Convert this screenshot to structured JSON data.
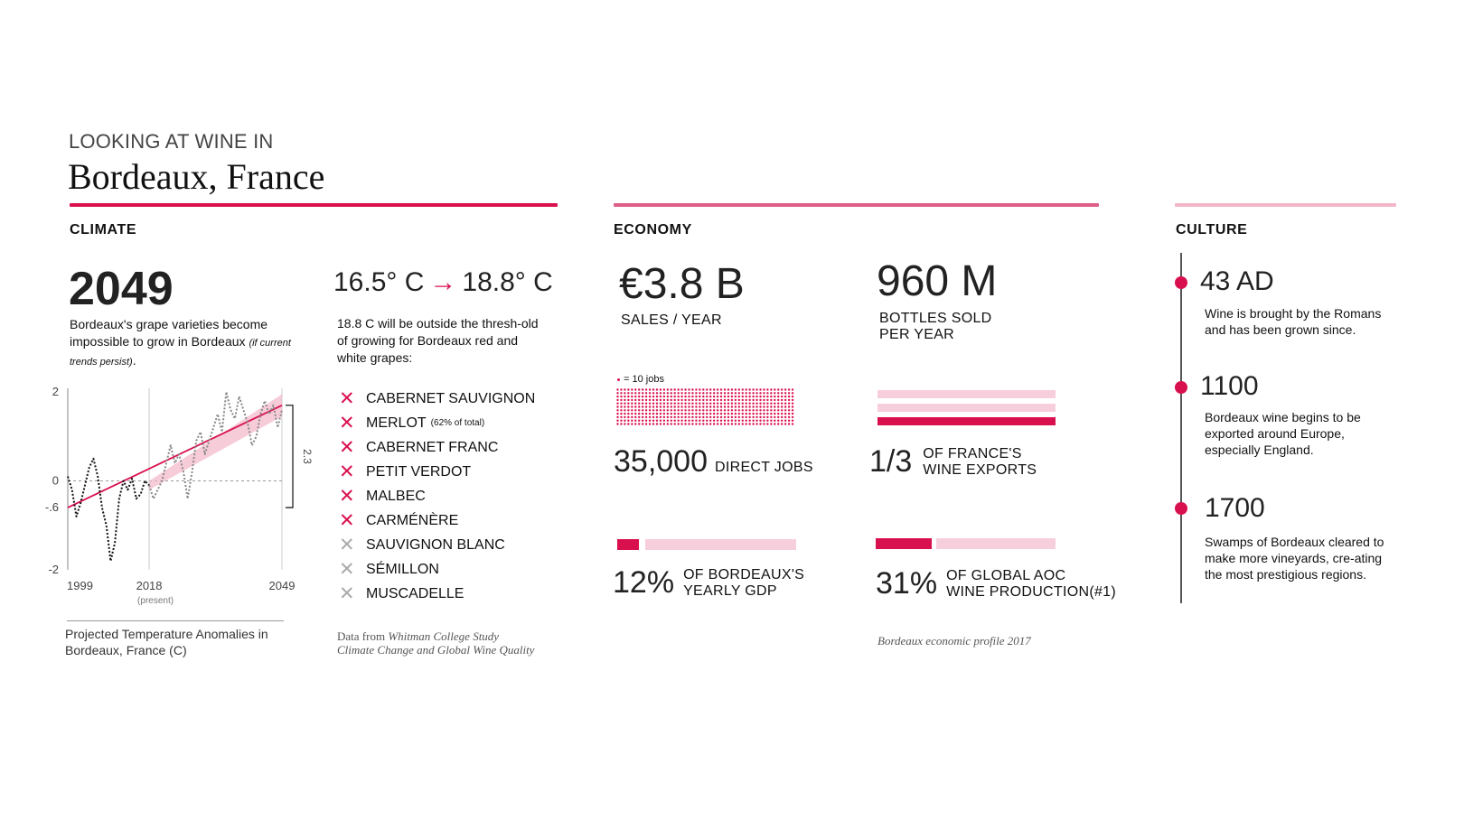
{
  "header": {
    "kicker": "LOOKING AT WINE IN",
    "title": "Bordeaux, France"
  },
  "colors": {
    "accent": "#d9104e",
    "economy_rule": "#de5f87",
    "culture_rule": "#f3b6c9",
    "light_pink": "#f7cfdc"
  },
  "climate": {
    "heading": "CLIMATE",
    "stat_value": "2049",
    "stat_desc": "Bordeaux's grape varieties become impossible to grow in Bordeaux",
    "stat_note": "(if current trends persist)",
    "stat_end": ".",
    "temp_from": "16.5° C",
    "temp_arrow": "→",
    "temp_to": "18.8° C",
    "temp_desc": "18.8 C will be outside the thresh-old of growing for Bordeaux red and white grapes:",
    "grapes": [
      {
        "name": "CABERNET SAUVIGNON",
        "note": "",
        "status": "affected"
      },
      {
        "name": "MERLOT",
        "note": "(62% of total)",
        "status": "affected"
      },
      {
        "name": "CABERNET FRANC",
        "note": "",
        "status": "affected"
      },
      {
        "name": "PETIT VERDOT",
        "note": "",
        "status": "affected"
      },
      {
        "name": "MALBEC",
        "note": "",
        "status": "affected"
      },
      {
        "name": "CARMÉNÈRE",
        "note": "",
        "status": "affected"
      },
      {
        "name": "SAUVIGNON BLANC",
        "note": "",
        "status": "not-affected"
      },
      {
        "name": "SÉMILLON",
        "note": "",
        "status": "not-affected"
      },
      {
        "name": "MUSCADELLE",
        "note": "",
        "status": "not-affected"
      }
    ],
    "x_mark": "✕",
    "chart_caption": "Projected Temperature Anomalies in Bordeaux, France (C)",
    "source_prefix": "Data from ",
    "source_title1": "Whitman College Study",
    "source_title2": "Climate Change and Global Wine Quality"
  },
  "chart_data": {
    "type": "line",
    "title": "Projected Temperature Anomalies in Bordeaux, France (C)",
    "xlabel": "",
    "ylabel": "",
    "xlim": [
      1999,
      2049
    ],
    "ylim": [
      -2,
      2
    ],
    "x_ticks": [
      "1999",
      "2018",
      "2049"
    ],
    "x_tick_note": "(present)",
    "y_ticks": [
      "2",
      "0",
      "-.6",
      "-2"
    ],
    "annotation": "2.3",
    "grid": "vertical lines at 2018 and 2049, dashed zero line",
    "series": [
      {
        "style": "dotted",
        "x": [
          1999,
          2000,
          2001,
          2002,
          2003,
          2004,
          2005,
          2006,
          2007,
          2008,
          2009,
          2010,
          2011,
          2012,
          2013,
          2014,
          2015,
          2016,
          2017,
          2018
        ],
        "y": [
          0.1,
          -0.2,
          -0.8,
          -0.5,
          -0.1,
          0.3,
          0.5,
          0.1,
          -0.6,
          -1.0,
          -1.8,
          -1.4,
          -0.4,
          0.0,
          -0.2,
          0.05,
          -0.4,
          -0.3,
          0.0,
          -0.1
        ]
      },
      {
        "style": "dotted",
        "x": [
          2018,
          2019,
          2020,
          2021,
          2022,
          2023,
          2024,
          2025,
          2026,
          2027,
          2028,
          2029,
          2030,
          2031,
          2032,
          2033,
          2034,
          2035,
          2036,
          2037,
          2038,
          2039,
          2040,
          2041,
          2042,
          2043,
          2044,
          2045,
          2046,
          2047,
          2048,
          2049
        ],
        "y": [
          -0.1,
          -0.4,
          -0.2,
          0.0,
          0.4,
          0.8,
          0.4,
          0.6,
          0.2,
          -0.4,
          0.2,
          0.9,
          1.1,
          0.6,
          0.9,
          1.2,
          1.5,
          1.1,
          2.0,
          1.6,
          1.4,
          1.9,
          1.6,
          1.3,
          0.8,
          1.0,
          1.5,
          1.8,
          1.5,
          1.7,
          1.2,
          1.6
        ]
      },
      {
        "style": "trend",
        "x": [
          1999,
          2049
        ],
        "y": [
          -0.6,
          1.7
        ]
      }
    ]
  },
  "economy": {
    "heading": "ECONOMY",
    "sales_value": "€3.8 B",
    "sales_label": "SALES / YEAR",
    "bottles_value": "960 M",
    "bottles_label1": "BOTTLES SOLD",
    "bottles_label2": "PER YEAR",
    "dot_key": "= 10 jobs",
    "jobs_value": "35,000",
    "jobs_label": "DIRECT JOBS",
    "jobs_count": 35000,
    "exports_value": "1/3",
    "exports_label1": "OF FRANCE'S",
    "exports_label2": "WINE EXPORTS",
    "exports_share": 0.333,
    "gdp_value": "12%",
    "gdp_label1": "OF  BORDEAUX'S",
    "gdp_label2": "YEARLY GDP",
    "gdp_share": 0.12,
    "aoc_value": "31%",
    "aoc_label1": "OF GLOBAL AOC",
    "aoc_label2": "WINE PRODUCTION(#1)",
    "aoc_share": 0.31,
    "source": "Bordeaux economic profile 2017"
  },
  "culture": {
    "heading": "CULTURE",
    "events": [
      {
        "year": "43 AD",
        "desc": "Wine is brought by the Romans and has been grown since."
      },
      {
        "year": "1100",
        "desc": "Bordeaux wine begins to be exported around Europe, especially England."
      },
      {
        "year": "1700",
        "desc": "Swamps of Bordeaux cleared to make more vineyards,  cre-ating the most prestigious regions."
      }
    ]
  }
}
